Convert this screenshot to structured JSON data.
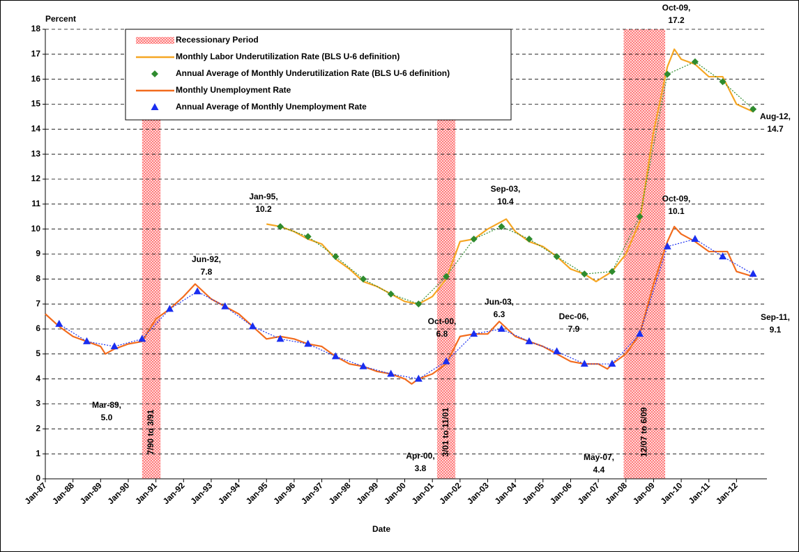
{
  "chart_data": {
    "type": "line",
    "y_label": "Percent",
    "x_label": "Date",
    "xlim": [
      1987,
      2013.1
    ],
    "ylim": [
      0,
      18
    ],
    "yticks": [
      0,
      1,
      2,
      3,
      4,
      5,
      6,
      7,
      8,
      9,
      10,
      11,
      12,
      13,
      14,
      15,
      16,
      17,
      18
    ],
    "xticks": [
      {
        "value": 1987,
        "label": "Jan-87"
      },
      {
        "value": 1988,
        "label": "Jan-88"
      },
      {
        "value": 1989,
        "label": "Jan-89"
      },
      {
        "value": 1990,
        "label": "Jan-90"
      },
      {
        "value": 1991,
        "label": "Jan-91"
      },
      {
        "value": 1992,
        "label": "Jan-92"
      },
      {
        "value": 1993,
        "label": "Jan-93"
      },
      {
        "value": 1994,
        "label": "Jan-94"
      },
      {
        "value": 1995,
        "label": "Jan-95"
      },
      {
        "value": 1996,
        "label": "Jan-96"
      },
      {
        "value": 1997,
        "label": "Jan-97"
      },
      {
        "value": 1998,
        "label": "Jan-98"
      },
      {
        "value": 1999,
        "label": "Jan-99"
      },
      {
        "value": 2000,
        "label": "Jan-00"
      },
      {
        "value": 2001,
        "label": "Jan-01"
      },
      {
        "value": 2002,
        "label": "Jan-02"
      },
      {
        "value": 2003,
        "label": "Jan-03"
      },
      {
        "value": 2004,
        "label": "Jan-04"
      },
      {
        "value": 2005,
        "label": "Jan-05"
      },
      {
        "value": 2006,
        "label": "Jan-06"
      },
      {
        "value": 2007,
        "label": "Jan-07"
      },
      {
        "value": 2008,
        "label": "Jan-08"
      },
      {
        "value": 2009,
        "label": "Jan-09"
      },
      {
        "value": 2010,
        "label": "Jan-10"
      },
      {
        "value": 2011,
        "label": "Jan-11"
      },
      {
        "value": 2012,
        "label": "Jan-12"
      }
    ],
    "grid": true,
    "recessions": {
      "name": "Recessionary Period",
      "color": "#ff3b3b",
      "periods": [
        {
          "start": 1990.5,
          "end": 1991.17,
          "label": "7/90 to 3/91"
        },
        {
          "start": 2001.17,
          "end": 2001.83,
          "label": "3/01 to 11/01"
        },
        {
          "start": 2007.92,
          "end": 2009.42,
          "label": "12/07 to 6/09"
        }
      ]
    },
    "series": [
      {
        "name": "Monthly Labor Underutilization Rate (BLS U-6 definition)",
        "color": "#f5a623",
        "marker": "none",
        "x": [
          1995,
          1995.5,
          1996,
          1996.5,
          1997,
          1997.5,
          1998,
          1998.5,
          1999,
          1999.5,
          2000,
          2000.5,
          2001,
          2001.5,
          2002,
          2002.5,
          2003,
          2003.67,
          2004,
          2004.5,
          2005,
          2005.5,
          2006,
          2006.5,
          2006.92,
          2007.5,
          2008,
          2008.5,
          2009,
          2009.5,
          2009.75,
          2010,
          2010.5,
          2011,
          2011.5,
          2012,
          2012.6
        ],
        "values": [
          10.2,
          10.1,
          9.9,
          9.6,
          9.4,
          8.8,
          8.4,
          7.9,
          7.7,
          7.4,
          7.1,
          7.0,
          7.3,
          8.0,
          9.5,
          9.6,
          10.0,
          10.4,
          9.9,
          9.5,
          9.3,
          8.9,
          8.4,
          8.2,
          7.9,
          8.3,
          9.0,
          10.3,
          13.9,
          16.5,
          17.2,
          16.8,
          16.6,
          16.1,
          16.1,
          15.0,
          14.7
        ]
      },
      {
        "name": "Annual Average of Monthly Underutilization Rate (BLS U-6 definition)",
        "color": "#2e8b2e",
        "marker": "diamond",
        "x": [
          1995.5,
          1996.5,
          1997.5,
          1998.5,
          1999.5,
          2000.5,
          2001.5,
          2002.5,
          2003.5,
          2004.5,
          2005.5,
          2006.5,
          2007.5,
          2008.5,
          2009.5,
          2010.5,
          2011.5,
          2012.6
        ],
        "values": [
          10.1,
          9.7,
          8.9,
          8.0,
          7.4,
          7.0,
          8.1,
          9.6,
          10.1,
          9.6,
          8.9,
          8.2,
          8.3,
          10.5,
          16.2,
          16.7,
          15.9,
          14.8
        ]
      },
      {
        "name": "Monthly Unemployment Rate",
        "color": "#f26b1d",
        "marker": "none",
        "x": [
          1987,
          1987.5,
          1988,
          1988.5,
          1989,
          1989.17,
          1989.5,
          1990,
          1990.5,
          1991,
          1991.5,
          1992,
          1992.42,
          1993,
          1993.5,
          1994,
          1994.5,
          1995,
          1995.5,
          1996,
          1996.5,
          1997,
          1997.5,
          1998,
          1998.5,
          1999,
          1999.5,
          2000,
          2000.25,
          2000.5,
          2001,
          2001.5,
          2002,
          2002.5,
          2003,
          2003.42,
          2004,
          2004.5,
          2005,
          2005.5,
          2006,
          2006.5,
          2007,
          2007.33,
          2007.5,
          2008,
          2008.5,
          2009,
          2009.5,
          2009.75,
          2010,
          2010.5,
          2011,
          2011.5,
          2011.67,
          2012,
          2012.6
        ],
        "values": [
          6.6,
          6.1,
          5.7,
          5.5,
          5.3,
          5.0,
          5.2,
          5.4,
          5.5,
          6.4,
          6.8,
          7.3,
          7.8,
          7.2,
          6.9,
          6.6,
          6.1,
          5.6,
          5.7,
          5.6,
          5.4,
          5.3,
          4.9,
          4.6,
          4.5,
          4.3,
          4.2,
          4.0,
          3.8,
          4.0,
          4.2,
          4.6,
          5.7,
          5.8,
          5.8,
          6.3,
          5.7,
          5.5,
          5.3,
          5.0,
          4.7,
          4.6,
          4.6,
          4.4,
          4.6,
          5.0,
          5.8,
          7.8,
          9.5,
          10.1,
          9.8,
          9.5,
          9.1,
          9.1,
          9.1,
          8.3,
          8.1
        ]
      },
      {
        "name": "Annual Average of Monthly Unemployment Rate",
        "color": "#1a2ef0",
        "marker": "triangle",
        "x": [
          1987.5,
          1988.5,
          1989.5,
          1990.5,
          1991.5,
          1992.5,
          1993.5,
          1994.5,
          1995.5,
          1996.5,
          1997.5,
          1998.5,
          1999.5,
          2000.5,
          2001.5,
          2002.5,
          2003.5,
          2004.5,
          2005.5,
          2006.5,
          2007.5,
          2008.5,
          2009.5,
          2010.5,
          2011.5,
          2012.6
        ],
        "values": [
          6.2,
          5.5,
          5.3,
          5.6,
          6.8,
          7.5,
          6.9,
          6.1,
          5.6,
          5.4,
          4.9,
          4.5,
          4.2,
          4.0,
          4.7,
          5.8,
          6.0,
          5.5,
          5.1,
          4.6,
          4.6,
          5.8,
          9.3,
          9.6,
          8.9,
          8.2
        ]
      }
    ],
    "annotations": [
      [
        "Jan-95,",
        "10.2"
      ],
      [
        "Jun-92,",
        "7.8"
      ],
      [
        "Mar-89,",
        "5.0"
      ],
      [
        "Oct-00,",
        "6.8"
      ],
      [
        "Apr-00,",
        "3.8"
      ],
      [
        "Jun-03,",
        "6.3"
      ],
      [
        "Sep-03,",
        "10.4"
      ],
      [
        "Dec-06,",
        "7.9"
      ],
      [
        "May-07,",
        "4.4"
      ],
      [
        "Oct-09,",
        "17.2"
      ],
      [
        "Oct-09,",
        "10.1"
      ],
      [
        "Aug-12,",
        "14.7"
      ],
      [
        "Sep-11,",
        "9.1"
      ]
    ]
  }
}
